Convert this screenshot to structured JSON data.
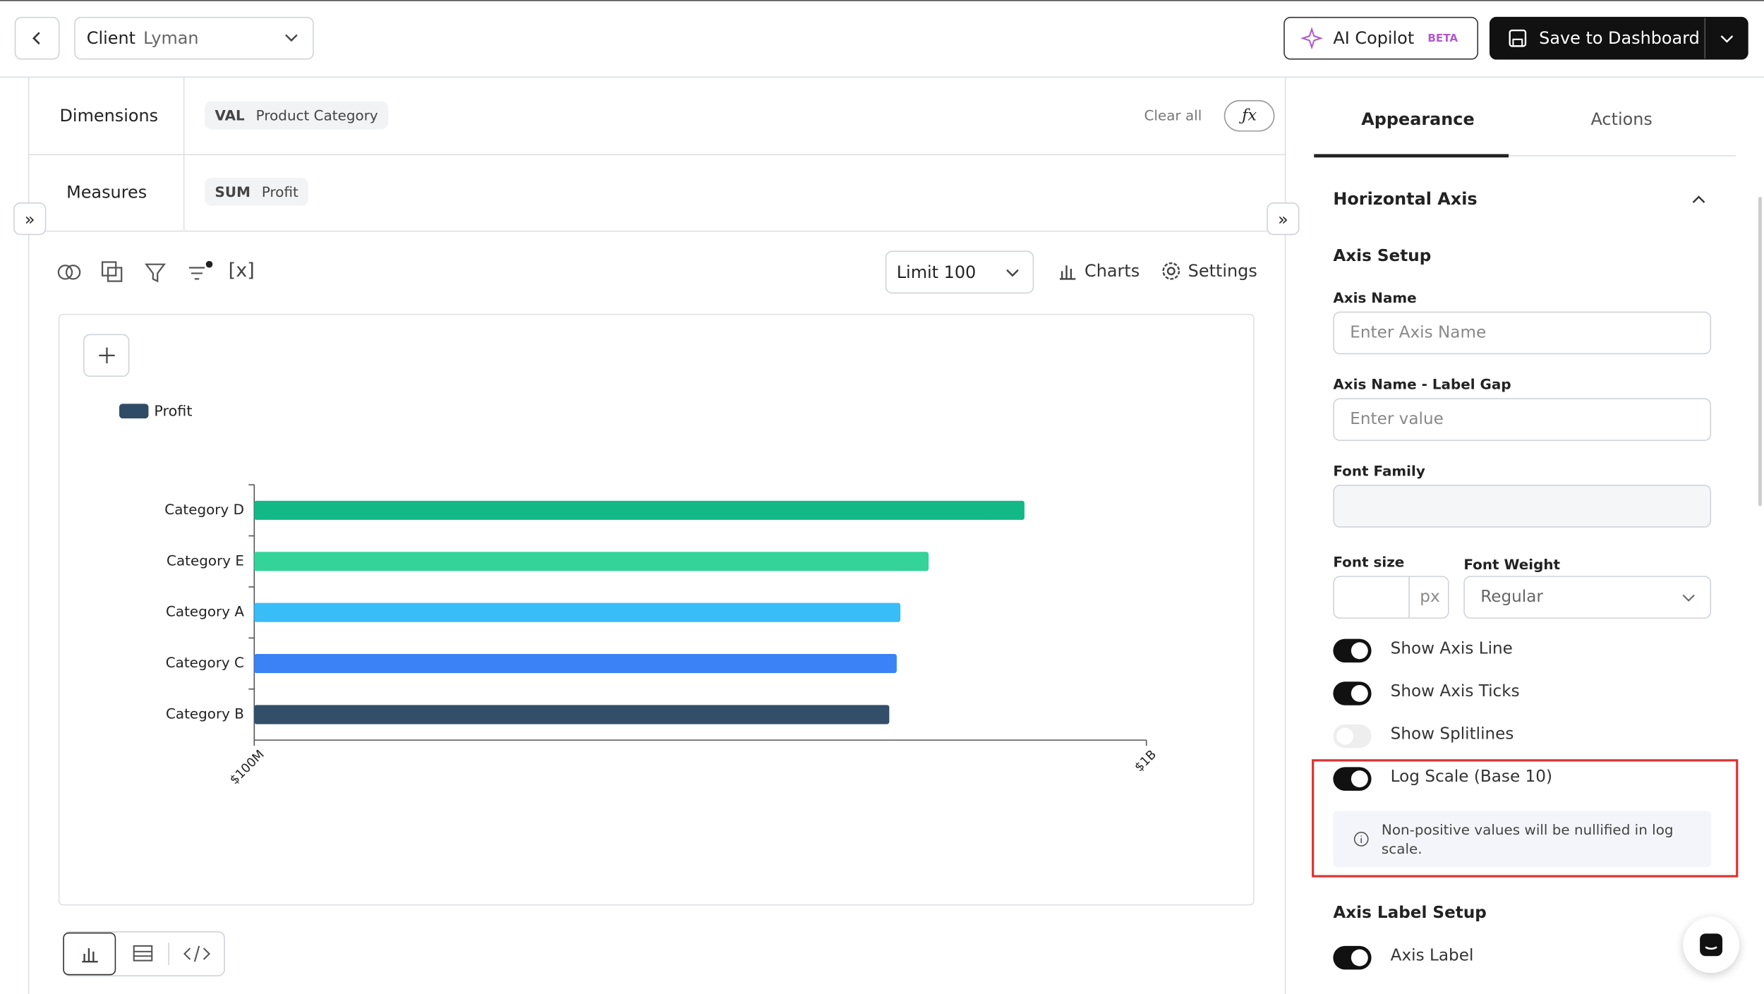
{
  "header": {
    "client_label": "Client",
    "client_value": "Lyman",
    "ai_copilot": "AI Copilot",
    "beta": "BETA",
    "save": "Save to Dashboard"
  },
  "query": {
    "dimensions_label": "Dimensions",
    "dimension_agg": "VAL",
    "dimension_field": "Product Category",
    "clear_all": "Clear all",
    "formula": "ƒx",
    "measures_label": "Measures",
    "measure_agg": "SUM",
    "measure_field": "Profit"
  },
  "toolbar": {
    "variables": "[x]",
    "limit": "Limit 100",
    "charts": "Charts",
    "settings": "Settings"
  },
  "chart_data": {
    "type": "bar",
    "orientation": "horizontal",
    "categories": [
      "Category D",
      "Category E",
      "Category A",
      "Category C",
      "Category B"
    ],
    "series": [
      {
        "name": "Profit",
        "color": "#2f4b66",
        "values": [
          730000000,
          570000000,
          530000000,
          525000000,
          515000000
        ]
      }
    ],
    "colors": [
      "#12b886",
      "#34d399",
      "#38bdf8",
      "#3b82f6",
      "#334e68"
    ],
    "xlim": [
      100000000,
      1000000000
    ],
    "xticks": [
      {
        "value": 100000000,
        "label": "$100M"
      },
      {
        "value": 1000000000,
        "label": "$1B"
      }
    ],
    "log_scale": true,
    "grid": false,
    "legend": "top-left"
  },
  "panel": {
    "tabs": [
      "Appearance",
      "Actions"
    ],
    "section": "Horizontal Axis",
    "axis_setup": "Axis Setup",
    "axis_name_label": "Axis Name",
    "axis_name_placeholder": "Enter Axis Name",
    "gap_label": "Axis Name - Label Gap",
    "gap_placeholder": "Enter value",
    "font_family_label": "Font Family",
    "font_size_label": "Font size",
    "px": "px",
    "font_weight_label": "Font Weight",
    "font_weight": "Regular",
    "toggles": [
      {
        "label": "Show Axis Line",
        "on": true
      },
      {
        "label": "Show Axis Ticks",
        "on": true
      },
      {
        "label": "Show Splitlines",
        "on": false
      },
      {
        "label": "Log Scale (Base 10)",
        "on": true
      }
    ],
    "note": "Non-positive values will be nullified in log scale.",
    "label_setup": "Axis Label Setup",
    "axis_label_toggle": {
      "label": "Axis Label",
      "on": true
    }
  }
}
